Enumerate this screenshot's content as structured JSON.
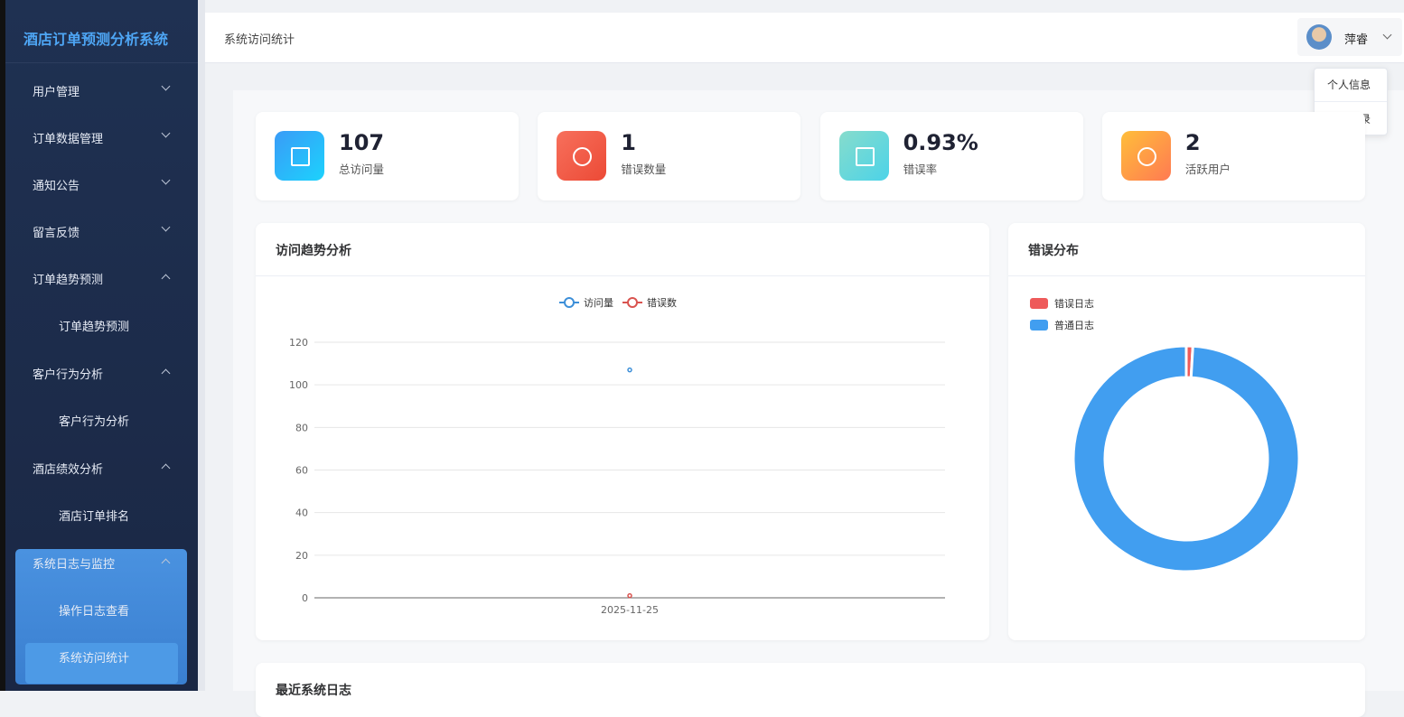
{
  "app_title": "酒店订单预测分析系统",
  "menu": [
    {
      "label": "用户管理"
    },
    {
      "label": "订单数据管理"
    },
    {
      "label": "通知公告"
    },
    {
      "label": "留言反馈"
    },
    {
      "label": "订单趋势预测",
      "children": [
        "订单趋势预测"
      ]
    },
    {
      "label": "客户行为分析",
      "children": [
        "客户行为分析"
      ]
    },
    {
      "label": "酒店绩效分析",
      "children": [
        "酒店订单排名"
      ]
    },
    {
      "label": "系统日志与监控",
      "children": [
        "操作日志查看",
        "系统访问统计"
      ]
    }
  ],
  "header": {
    "breadcrumb": "系统访问统计",
    "user": "萍睿",
    "dropdown": [
      "个人信息",
      "退出登录"
    ]
  },
  "stats": [
    {
      "value": "107",
      "label": "总访问量"
    },
    {
      "value": "1",
      "label": "错误数量"
    },
    {
      "value": "0.93%",
      "label": "错误率"
    },
    {
      "value": "2",
      "label": "活跃用户"
    }
  ],
  "trend_chart": {
    "type": "line",
    "title": "访问趋势分析",
    "x": [
      "2025-11-25"
    ],
    "series": [
      {
        "name": "访问量",
        "color": "#3d8fd8",
        "values": [
          107
        ]
      },
      {
        "name": "错误数",
        "color": "#d9534f",
        "values": [
          1
        ]
      }
    ],
    "ylim": [
      0,
      120
    ],
    "yticks": [
      0,
      20,
      40,
      60,
      80,
      100,
      120
    ],
    "grid": true
  },
  "error_chart": {
    "type": "pie",
    "title": "错误分布",
    "categories": [
      "错误日志",
      "普通日志"
    ],
    "values": [
      1,
      106
    ],
    "colors": [
      "#ee5a5a",
      "#419ef0"
    ]
  },
  "recent_logs": {
    "title": "最近系统日志"
  }
}
